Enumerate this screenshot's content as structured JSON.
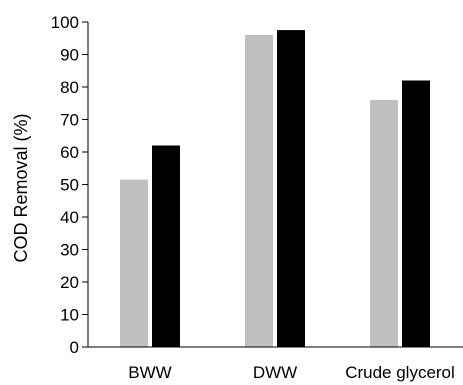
{
  "chart_data": {
    "type": "bar",
    "title": "",
    "xlabel": "",
    "ylabel": "COD Removal (%)",
    "categories": [
      "BWW",
      "DWW",
      "Crude glycerol"
    ],
    "series": [
      {
        "color": "#bfbfbf",
        "values": [
          51.5,
          96,
          76
        ]
      },
      {
        "color": "#000000",
        "values": [
          62,
          97.5,
          82
        ]
      }
    ],
    "ylim": [
      0,
      100
    ],
    "yticks": [
      "0",
      "10",
      "20",
      "30",
      "40",
      "50",
      "60",
      "70",
      "80",
      "90",
      "100"
    ],
    "grid": false,
    "legend": "none"
  }
}
